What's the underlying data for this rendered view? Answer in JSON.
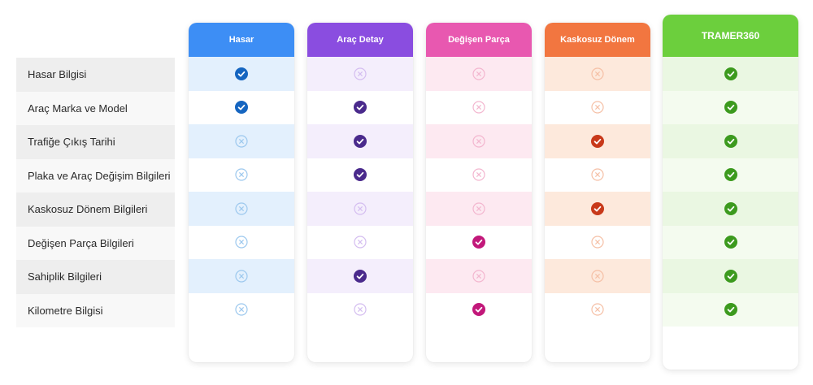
{
  "rows": [
    "Hasar Bilgisi",
    "Araç Marka ve Model",
    "Trafiğe Çıkış Tarihi",
    "Plaka ve Araç Değişim Bilgileri",
    "Kaskosuz Dönem Bilgileri",
    "Değişen Parça Bilgileri",
    "Sahiplik Bilgileri",
    "Kilometre Bilgisi"
  ],
  "columns": [
    {
      "label": "Hasar",
      "header_color": "#3d8ef5",
      "cell_bg_odd": "#e3f0fd",
      "cell_bg_even": "#ffffff",
      "check_color": "#1565c0",
      "cross_color": "#9cc8ee",
      "values": [
        true,
        true,
        false,
        false,
        false,
        false,
        false,
        false
      ]
    },
    {
      "label": "Araç Detay",
      "header_color": "#8a4de0",
      "cell_bg_odd": "#f4eefc",
      "cell_bg_even": "#ffffff",
      "check_color": "#4a2a8c",
      "cross_color": "#d4bdf0",
      "values": [
        false,
        true,
        true,
        true,
        false,
        false,
        true,
        false
      ]
    },
    {
      "label": "Değişen Parça",
      "header_color": "#e858b0",
      "cell_bg_odd": "#fde9f1",
      "cell_bg_even": "#ffffff",
      "check_color": "#c2187a",
      "cross_color": "#f3b6cf",
      "values": [
        false,
        false,
        false,
        false,
        false,
        true,
        false,
        true
      ]
    },
    {
      "label": "Kaskosuz Dönem",
      "header_color": "#f27640",
      "cell_bg_odd": "#fde9dc",
      "cell_bg_even": "#ffffff",
      "check_color": "#c8391a",
      "cross_color": "#f5c0a6",
      "values": [
        false,
        false,
        true,
        false,
        true,
        false,
        false,
        false
      ]
    },
    {
      "label": "TRAMER360",
      "header_color": "#6ccf3d",
      "cell_bg_odd": "#eaf7e2",
      "cell_bg_even": "#f4fbef",
      "check_color": "#3c9a1e",
      "cross_color": "#b9e2a3",
      "values": [
        true,
        true,
        true,
        true,
        true,
        true,
        true,
        true
      ]
    }
  ]
}
